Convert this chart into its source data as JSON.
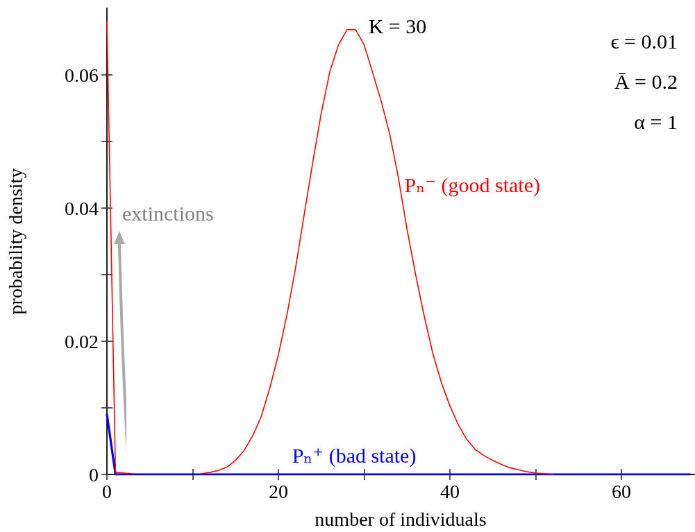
{
  "chart_data": {
    "type": "line",
    "xlabel": "number of individuals",
    "ylabel": "probability density",
    "x": [
      0,
      1,
      2,
      3,
      4,
      5,
      6,
      7,
      8,
      9,
      10,
      11,
      12,
      13,
      14,
      15,
      16,
      17,
      18,
      19,
      20,
      21,
      22,
      23,
      24,
      25,
      26,
      27,
      28,
      29,
      30,
      31,
      32,
      33,
      34,
      35,
      36,
      37,
      38,
      39,
      40,
      41,
      42,
      43,
      44,
      45,
      46,
      47,
      48,
      49,
      50,
      51,
      52,
      53,
      54,
      55,
      56,
      57,
      58,
      59,
      60,
      61,
      62,
      63,
      64,
      65,
      66,
      67,
      68
    ],
    "series": [
      {
        "name": "Pₙ⁻ (good state)",
        "color": "#ff0000",
        "values": [
          0.068,
          0.0003,
          0.0002,
          0.0001,
          null,
          null,
          null,
          null,
          null,
          null,
          null,
          0.0001,
          0.0003,
          0.0006,
          0.0011,
          0.0021,
          0.0036,
          0.0058,
          0.0087,
          0.013,
          0.018,
          0.024,
          0.031,
          0.039,
          0.0468,
          0.0543,
          0.0605,
          0.0645,
          0.0668,
          0.0668,
          0.0645,
          0.0603,
          0.056,
          0.051,
          0.0445,
          0.0368,
          0.03,
          0.0238,
          0.0182,
          0.0138,
          0.0103,
          0.0074,
          0.0052,
          0.0037,
          0.0028,
          0.0021,
          0.0015,
          0.001,
          0.0007,
          0.0004,
          0.0002,
          0.0001,
          0,
          null,
          null,
          null,
          null,
          null,
          null,
          null,
          null,
          null,
          null,
          null,
          null,
          null,
          null,
          null,
          null
        ]
      },
      {
        "name": "Pₙ⁺ (bad state)",
        "color": "#0000ff",
        "values": [
          0.009,
          0,
          0,
          0,
          0,
          0,
          0,
          0,
          0,
          0,
          0,
          0,
          0,
          0,
          0,
          0,
          0,
          0,
          0,
          0,
          0,
          0,
          0,
          0,
          0,
          0,
          0,
          0,
          0,
          0,
          0,
          0,
          0,
          0,
          0,
          0,
          0,
          0,
          0,
          0,
          0,
          0,
          0,
          0,
          0,
          0,
          0,
          0,
          0,
          0,
          0,
          0,
          0,
          0,
          0,
          0,
          0,
          0,
          0,
          0,
          0,
          0,
          0,
          0,
          0,
          0,
          0,
          0,
          0
        ]
      }
    ],
    "xlim": [
      0,
      68.5
    ],
    "xticks": [
      0,
      {
        "value": 10,
        "label": null
      },
      20,
      {
        "value": 30,
        "label": null
      },
      40,
      {
        "value": 50,
        "label": null
      },
      60
    ],
    "ylim": [
      0,
      0.07
    ],
    "yticks": [
      0,
      {
        "value": 0.01,
        "label": null
      },
      0.02,
      {
        "value": 0.03,
        "label": null
      },
      0.04,
      {
        "value": 0.05,
        "label": null
      },
      0.06
    ],
    "annotations": [
      {
        "text": "K = 30",
        "x": 29,
        "y": 0.0668
      },
      "ϵ = 0.01",
      "Ā = 0.2",
      "α = 1",
      "extinctions"
    ],
    "grid": false,
    "legend": false,
    "marker": "none",
    "line_style": "solid"
  }
}
